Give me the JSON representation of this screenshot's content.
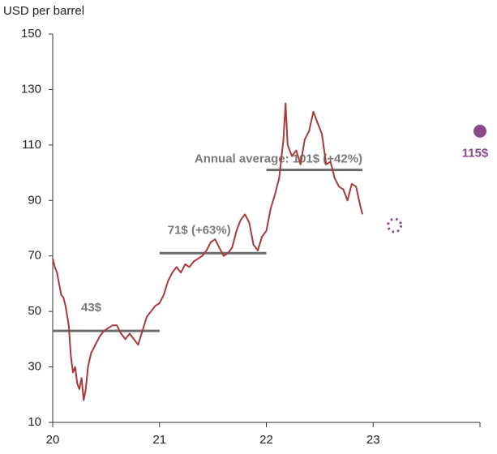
{
  "chart_data": {
    "type": "line",
    "y_label": "USD per barrel",
    "xlim": [
      20,
      24
    ],
    "xticks": [
      20,
      21,
      22,
      23
    ],
    "ylim": [
      10,
      150
    ],
    "yticks": [
      10,
      30,
      50,
      70,
      90,
      110,
      130,
      150
    ],
    "series": [
      {
        "color": "#a83a3a",
        "x": [
          20.0,
          20.02,
          20.04,
          20.06,
          20.08,
          20.1,
          20.12,
          20.15,
          20.17,
          20.19,
          20.21,
          20.23,
          20.25,
          20.27,
          20.29,
          20.31,
          20.33,
          20.36,
          20.4,
          20.44,
          20.48,
          20.52,
          20.56,
          20.6,
          20.64,
          20.68,
          20.72,
          20.76,
          20.8,
          20.84,
          20.88,
          20.92,
          20.96,
          21.0,
          21.04,
          21.08,
          21.12,
          21.16,
          21.2,
          21.24,
          21.28,
          21.32,
          21.36,
          21.4,
          21.44,
          21.48,
          21.52,
          21.56,
          21.6,
          21.64,
          21.68,
          21.72,
          21.76,
          21.8,
          21.84,
          21.88,
          21.92,
          21.96,
          22.0,
          22.04,
          22.08,
          22.12,
          22.16,
          22.18,
          22.2,
          22.24,
          22.28,
          22.32,
          22.36,
          22.4,
          22.44,
          22.48,
          22.52,
          22.56,
          22.6,
          22.64,
          22.68,
          22.72,
          22.76,
          22.8,
          22.84,
          22.88,
          22.9
        ],
        "values": [
          69,
          66,
          64,
          60,
          56,
          55,
          52,
          45,
          34,
          28,
          30,
          24,
          22,
          26,
          18,
          22,
          30,
          35,
          38,
          41,
          43,
          44,
          45,
          45,
          42,
          40,
          42,
          40,
          38,
          43,
          48,
          50,
          52,
          53,
          56,
          61,
          64,
          66,
          64,
          67,
          66,
          68,
          69,
          70,
          72,
          75,
          76,
          73,
          70,
          71,
          73,
          79,
          83,
          85,
          82,
          74,
          72,
          77,
          79,
          87,
          92,
          98,
          112,
          125,
          110,
          106,
          108,
          103,
          112,
          115,
          122,
          118,
          114,
          103,
          104,
          98,
          95,
          94,
          90,
          96,
          95,
          88,
          85
        ]
      }
    ],
    "averages": [
      {
        "label": "43$",
        "value": 43,
        "start": 20,
        "end": 21
      },
      {
        "label": "71$ (+63%)",
        "value": 71,
        "start": 21,
        "end": 22
      },
      {
        "label": "Annual average: 101$ (+42%)",
        "value": 101,
        "start": 22,
        "end": 22.9
      }
    ],
    "avg_color": "#6b6b6b",
    "forecasts": [
      {
        "x": 23.2,
        "value": 81,
        "style": "dotted"
      },
      {
        "x": 24,
        "value": 115,
        "label": "115$",
        "style": "filled"
      }
    ],
    "forecast_color": "#8a4a8a"
  }
}
